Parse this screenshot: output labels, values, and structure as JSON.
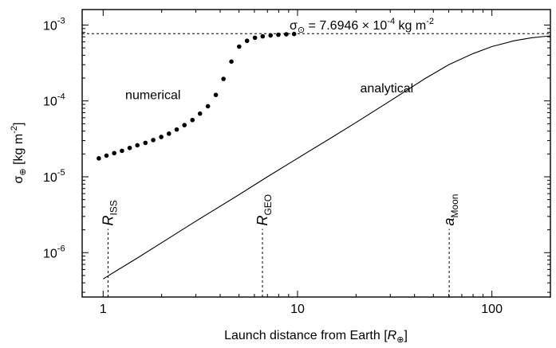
{
  "chart_data": {
    "type": "scatter",
    "x_scale": "log",
    "y_scale": "log",
    "xlim": [
      0.78,
      200
    ],
    "ylim": [
      2.6e-07,
      0.0016
    ],
    "x_ticks": [
      {
        "value": 1,
        "label": "1"
      },
      {
        "value": 10,
        "label": "10"
      },
      {
        "value": 100,
        "label": "100"
      }
    ],
    "y_ticks": [
      {
        "value": 1e-06,
        "base": "10",
        "exp": "-6"
      },
      {
        "value": 1e-05,
        "base": "10",
        "exp": "-5"
      },
      {
        "value": 0.0001,
        "base": "10",
        "exp": "-4"
      },
      {
        "value": 0.001,
        "base": "10",
        "exp": "-3"
      }
    ],
    "xlabel": {
      "main": "Launch distance from Earth [",
      "ital": "R",
      "sub": "⊕",
      "end": "]"
    },
    "ylabel": {
      "main": "σ",
      "sub": "⊕",
      "rest": " [kg m",
      "sup": "-2",
      "end": "]"
    },
    "asymptote": {
      "value": 0.00076946,
      "label": {
        "sigma": "σ",
        "sub": "⊙",
        "eq": " = 7.6946 × 10",
        "sup": "-4",
        "unit": " kg m",
        "sup2": "-2"
      }
    },
    "series": [
      {
        "name": "numerical",
        "style": "points",
        "x": [
          0.95,
          1.04,
          1.14,
          1.25,
          1.37,
          1.5,
          1.65,
          1.81,
          1.99,
          2.18,
          2.39,
          2.62,
          2.88,
          3.15,
          3.46,
          3.8,
          4.16,
          4.57,
          5.01,
          5.5,
          6.04,
          6.62,
          7.27,
          7.97,
          8.75,
          9.6
        ],
        "y": [
          1.75e-05,
          1.9e-05,
          2.05e-05,
          2.2e-05,
          2.4e-05,
          2.6e-05,
          2.8e-05,
          3.05e-05,
          3.35e-05,
          3.7e-05,
          4.2e-05,
          4.8e-05,
          5.6e-05,
          6.8e-05,
          8.5e-05,
          0.00012,
          0.000195,
          0.00033,
          0.00052,
          0.00062,
          0.00068,
          0.00071,
          0.00073,
          0.000745,
          0.000755,
          0.000762
        ]
      },
      {
        "name": "analytical",
        "style": "line",
        "x": [
          1,
          1.2,
          1.5,
          2,
          3,
          5,
          7,
          10,
          15,
          20,
          30,
          45,
          60,
          80,
          100,
          130,
          160,
          200
        ],
        "y": [
          4.5e-07,
          6e-07,
          8.5e-07,
          1.35e-06,
          2.6e-06,
          5.8e-06,
          1e-05,
          1.75e-05,
          3.3e-05,
          5.2e-05,
          0.0001,
          0.000195,
          0.0003,
          0.00042,
          0.00052,
          0.00062,
          0.00068,
          0.00072
        ]
      }
    ],
    "series_labels": [
      {
        "text": "numerical",
        "x": 1.3,
        "y": 0.000105
      },
      {
        "text": "analytical",
        "x": 21,
        "y": 0.00013
      }
    ],
    "markers": [
      {
        "id": "riss",
        "x": 1.06,
        "y_from": 2.6e-07,
        "y_to": 2.05e-06,
        "main": "R",
        "sub": "ISS"
      },
      {
        "id": "rgeo",
        "x": 6.6,
        "y_from": 2.6e-07,
        "y_to": 2.05e-06,
        "main": "R",
        "sub": "GEO"
      },
      {
        "id": "amoon",
        "x": 60.3,
        "y_from": 2.6e-07,
        "y_to": 2.05e-06,
        "main": "a",
        "sub": "Moon"
      }
    ],
    "grid": false,
    "legend": "none"
  }
}
